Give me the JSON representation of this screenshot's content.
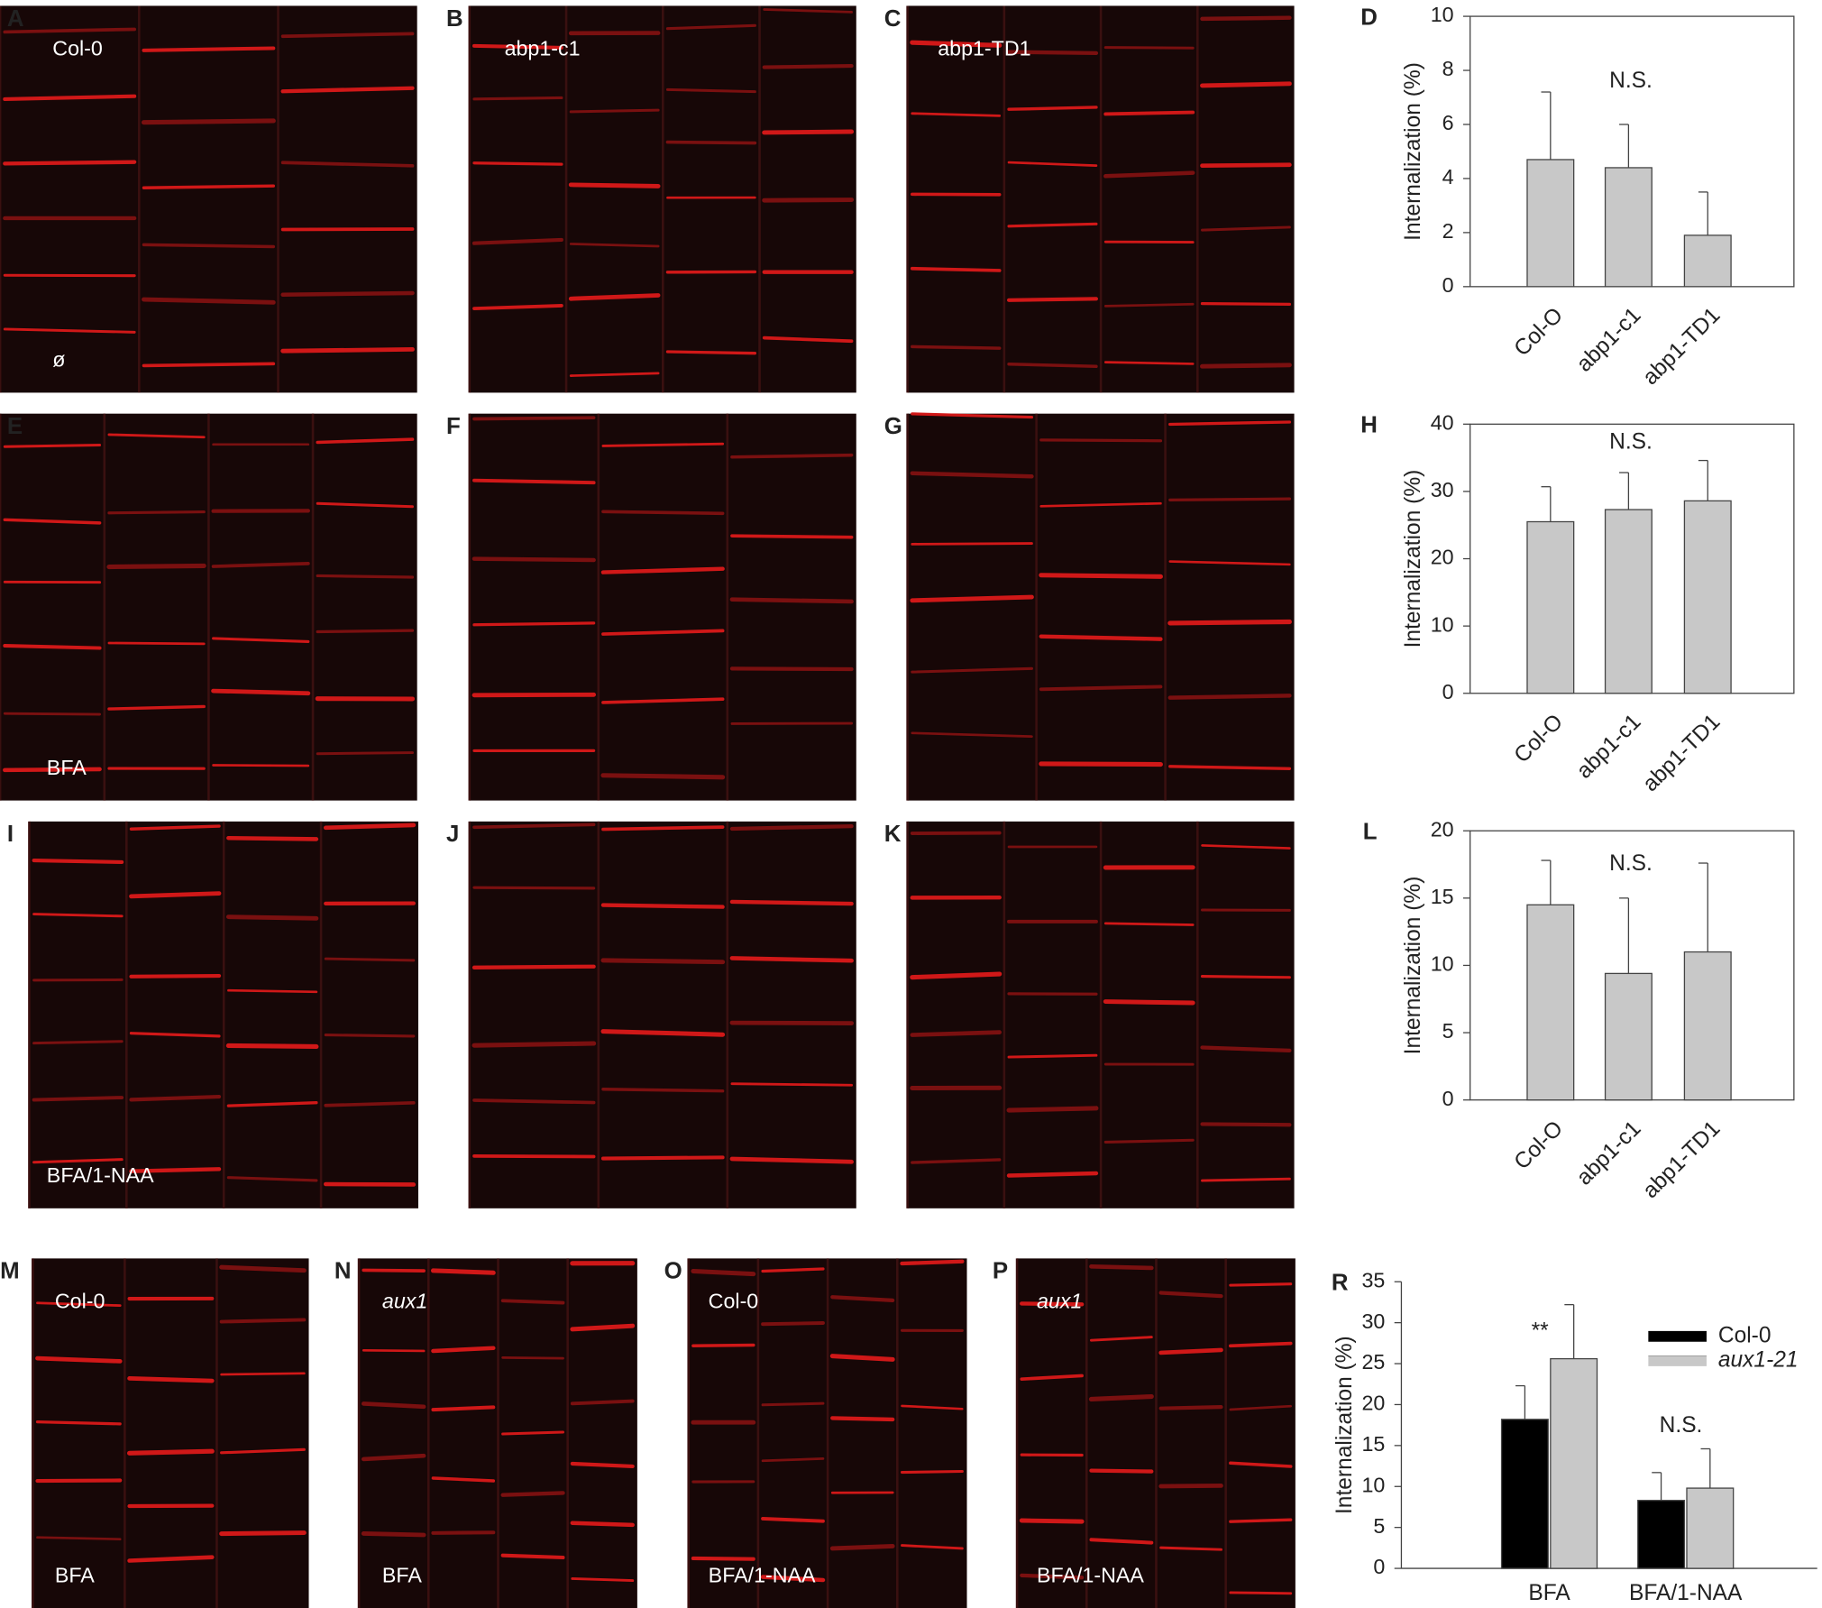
{
  "panels": [
    {
      "letter": "A",
      "top_label": "Col-0",
      "bottom_label": "ø"
    },
    {
      "letter": "B",
      "top_label": "abp1-c1"
    },
    {
      "letter": "C",
      "top_label": "abp1-TD1"
    },
    {
      "letter": "E",
      "bottom_label": "BFA"
    },
    {
      "letter": "F"
    },
    {
      "letter": "G"
    },
    {
      "letter": "I",
      "bottom_label": "BFA/1-NAA"
    },
    {
      "letter": "J"
    },
    {
      "letter": "K"
    },
    {
      "letter": "M",
      "top_label": "Col-0",
      "bottom_label": "BFA"
    },
    {
      "letter": "N",
      "top_label": "aux1",
      "bottom_label": "BFA"
    },
    {
      "letter": "O",
      "top_label": "Col-0",
      "bottom_label": "BFA/1-NAA"
    },
    {
      "letter": "P",
      "top_label": "aux1",
      "bottom_label": "BFA/1-NAA"
    }
  ],
  "chart_data": [
    {
      "type": "bar",
      "label": "D",
      "ylabel": "Internalization (%)",
      "categories": [
        "Col-O",
        "abp1-c1",
        "abp1-TD1"
      ],
      "values": [
        4.7,
        4.4,
        1.9
      ],
      "errors": [
        2.5,
        1.6,
        1.6
      ],
      "color": "#c8c8c8",
      "ylim": [
        0,
        10
      ],
      "yticks": [
        0,
        2,
        4,
        6,
        8,
        10
      ],
      "annotations": [
        "N.S."
      ]
    },
    {
      "type": "bar",
      "label": "H",
      "ylabel": "Internalization (%)",
      "categories": [
        "Col-O",
        "abp1-c1",
        "abp1-TD1"
      ],
      "values": [
        25.5,
        27.3,
        28.6
      ],
      "errors": [
        5.2,
        5.5,
        6.0
      ],
      "color": "#c8c8c8",
      "ylim": [
        0,
        40
      ],
      "yticks": [
        0,
        10,
        20,
        30,
        40
      ],
      "annotations": [
        "N.S."
      ]
    },
    {
      "type": "bar",
      "label": "L",
      "ylabel": "Internalization (%)",
      "categories": [
        "Col-O",
        "abp1-c1",
        "abp1-TD1"
      ],
      "values": [
        14.5,
        9.4,
        11.0
      ],
      "errors": [
        3.3,
        5.6,
        6.6
      ],
      "color": "#c8c8c8",
      "ylim": [
        0,
        20
      ],
      "yticks": [
        0,
        5,
        10,
        15,
        20
      ],
      "annotations": [
        "N.S."
      ]
    },
    {
      "type": "grouped_bar",
      "label": "R",
      "ylabel": "Internalization (%)",
      "categories": [
        "BFA",
        "BFA/1-NAA"
      ],
      "series": [
        {
          "name": "Col-0",
          "color": "#000000",
          "values": [
            18.2,
            8.3
          ],
          "errors": [
            4.1,
            3.4
          ]
        },
        {
          "name": "aux1-21",
          "color": "#c8c8c8",
          "values": [
            25.6,
            9.8
          ],
          "errors": [
            6.6,
            4.8
          ]
        }
      ],
      "ylim": [
        0,
        35
      ],
      "yticks": [
        0,
        5,
        10,
        15,
        20,
        25,
        30,
        35
      ],
      "annotations": [
        "**",
        "N.S."
      ]
    }
  ]
}
